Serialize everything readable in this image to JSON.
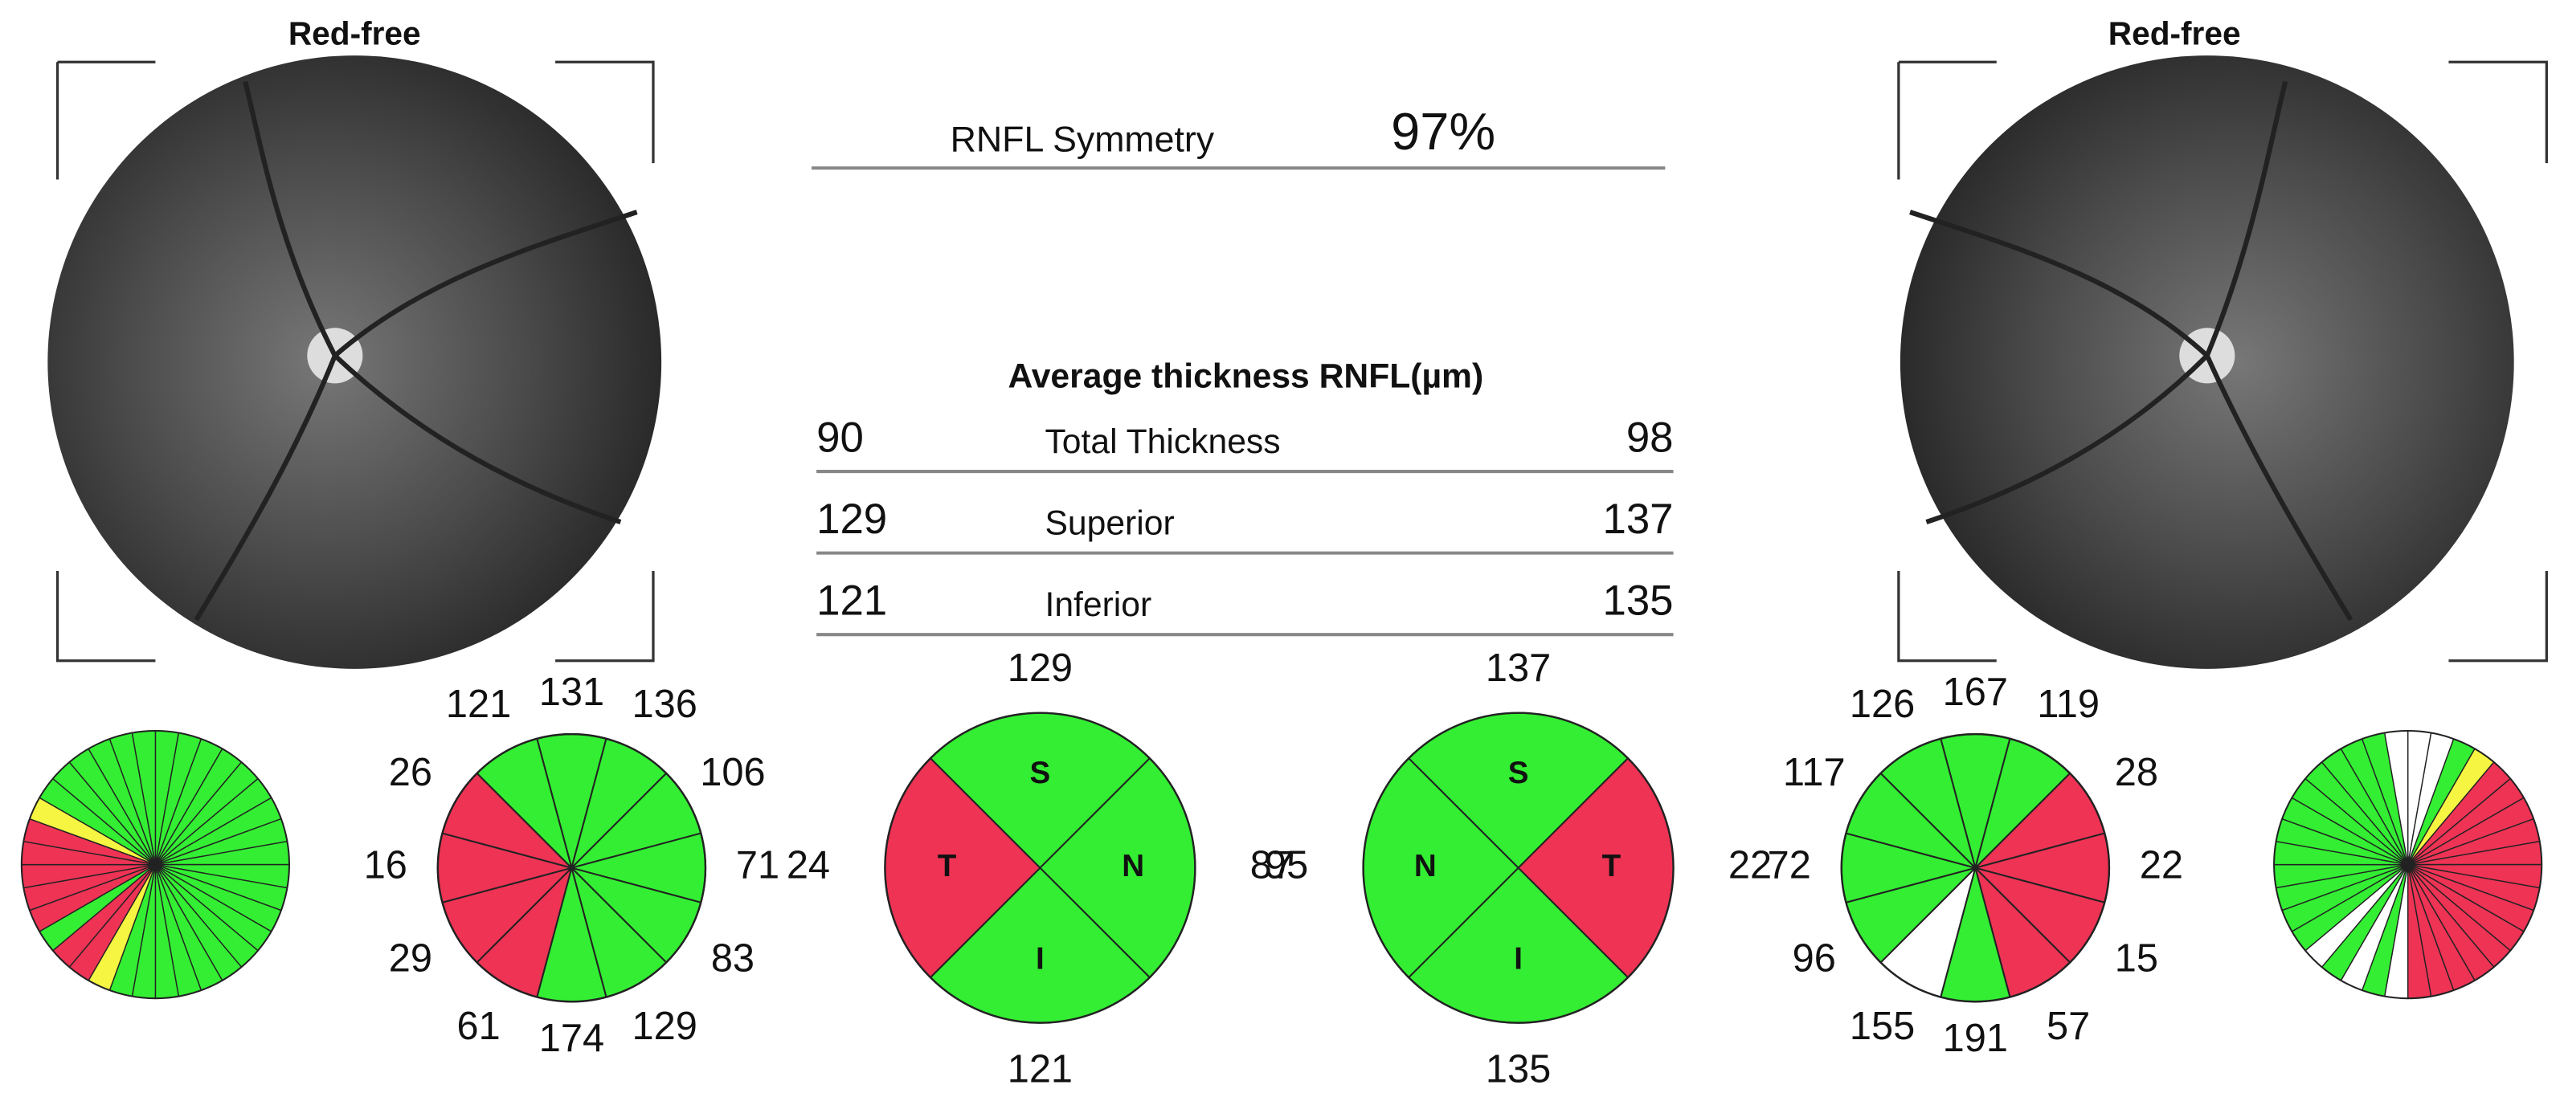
{
  "left_eye": {
    "image_label": "Red-free",
    "clock": {
      "values": [
        131,
        136,
        106,
        71,
        83,
        129,
        174,
        61,
        29,
        16,
        26,
        121
      ],
      "colors": [
        "#33ee33",
        "#33ee33",
        "#33ee33",
        "#33ee33",
        "#33ee33",
        "#33ee33",
        "#33ee33",
        "#ee3355",
        "#ee3355",
        "#ee3355",
        "#ee3355",
        "#33ee33"
      ]
    },
    "sector_colors": [
      "#33ee33",
      "#33ee33",
      "#33ee33",
      "#33ee33",
      "#33ee33",
      "#33ee33",
      "#33ee33",
      "#33ee33",
      "#33ee33",
      "#33ee33",
      "#33ee33",
      "#33ee33",
      "#33ee33",
      "#33ee33",
      "#33ee33",
      "#33ee33",
      "#33ee33",
      "#33ee33",
      "#33ee33",
      "#33ee33",
      "#f5f542",
      "#ee3355",
      "#ee3355",
      "#33ee33",
      "#ee3355",
      "#ee3355",
      "#ee3355",
      "#ee3355",
      "#ee3355",
      "#f5f542",
      "#33ee33",
      "#33ee33",
      "#33ee33",
      "#33ee33",
      "#33ee33",
      "#33ee33"
    ]
  },
  "right_eye": {
    "image_label": "Red-free",
    "clock": {
      "values": [
        167,
        119,
        28,
        22,
        15,
        57,
        191,
        155,
        96,
        72,
        117,
        126
      ],
      "colors": [
        "#33ee33",
        "#33ee33",
        "#ee3355",
        "#ee3355",
        "#ee3355",
        "#ee3355",
        "#33ee33",
        "#ffffff",
        "#33ee33",
        "#33ee33",
        "#33ee33",
        "#33ee33"
      ]
    },
    "sector_colors": [
      "#ffffff",
      "#ffffff",
      "#33ee33",
      "#f5f542",
      "#ee3355",
      "#ee3355",
      "#ee3355",
      "#ee3355",
      "#ee3355",
      "#ee3355",
      "#ee3355",
      "#ee3355",
      "#ee3355",
      "#ee3355",
      "#ee3355",
      "#ee3355",
      "#ee3355",
      "#ee3355",
      "#ffffff",
      "#33ee33",
      "#ffffff",
      "#33ee33",
      "#ffffff",
      "#33ee33",
      "#33ee33",
      "#33ee33",
      "#33ee33",
      "#33ee33",
      "#33ee33",
      "#33ee33",
      "#33ee33",
      "#33ee33",
      "#33ee33",
      "#33ee33",
      "#33ee33",
      "#ffffff"
    ]
  },
  "symmetry": {
    "label": "RNFL Symmetry",
    "value": "97%"
  },
  "thickness": {
    "title": "Average thickness RNFL(µm)",
    "rows": [
      [
        "90",
        "Total Thickness",
        "98"
      ],
      [
        "129",
        "Superior",
        "137"
      ],
      [
        "121",
        "Inferior",
        "135"
      ]
    ]
  },
  "quadrants": [
    {
      "sectors": [
        {
          "letter": "S",
          "value": 129,
          "color": "#33ee33"
        },
        {
          "letter": "N",
          "value": 87,
          "color": "#33ee33"
        },
        {
          "letter": "I",
          "value": 121,
          "color": "#33ee33"
        },
        {
          "letter": "T",
          "value": 24,
          "color": "#ee3355"
        }
      ]
    },
    {
      "sectors": [
        {
          "letter": "S",
          "value": 137,
          "color": "#33ee33"
        },
        {
          "letter": "T",
          "value": 22,
          "color": "#ee3355"
        },
        {
          "letter": "I",
          "value": 135,
          "color": "#33ee33"
        },
        {
          "letter": "N",
          "value": 95,
          "color": "#33ee33"
        }
      ]
    }
  ]
}
